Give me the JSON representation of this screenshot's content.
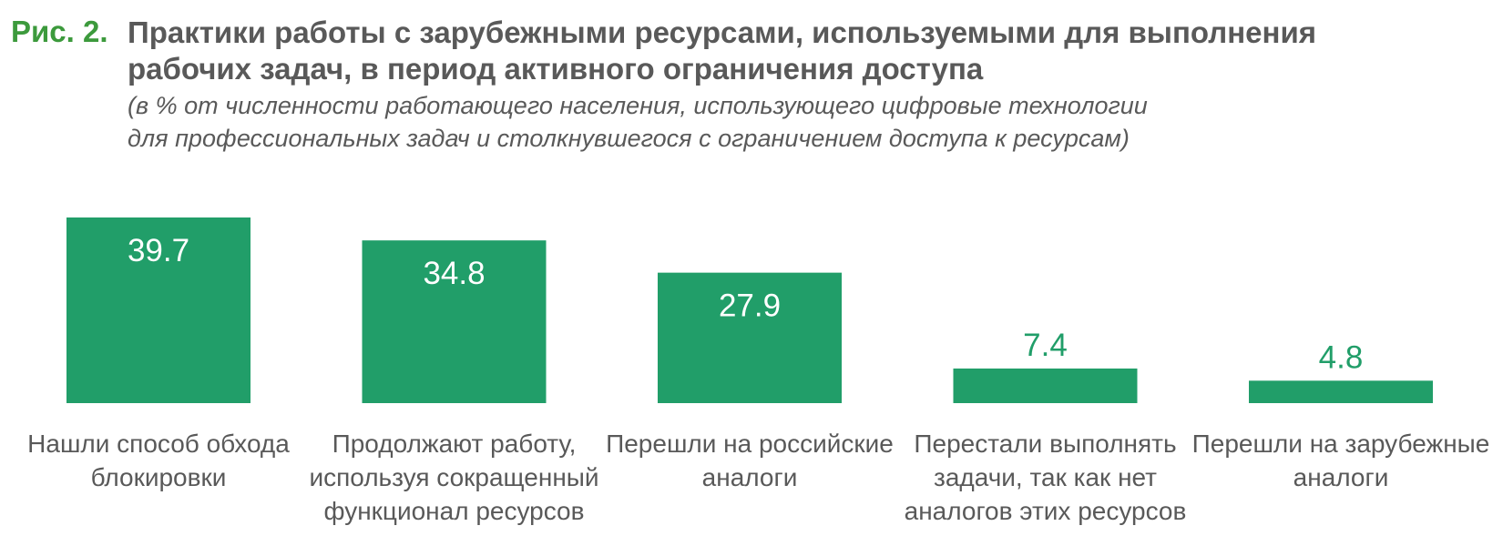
{
  "figure": {
    "label": "Рис. 2.",
    "title_lines": [
      "Практики работы с зарубежными ресурсами, используемыми для выполнения",
      "рабочих задач, в период активного ограничения доступа"
    ],
    "subtitle_lines": [
      "(в % от численности работающего населения, использующего цифровые технологии",
      "для профессиональных задач и столкнувшегося с ограничением доступа к ресурсам)"
    ]
  },
  "colors": {
    "bar": "#219e69",
    "label_green": "#3c9a3c",
    "text_gray": "#595959",
    "value_inside": "#ffffff",
    "value_outside": "#219e69"
  },
  "chart_data": {
    "type": "bar",
    "categories": [
      [
        "Нашли способ обхода",
        "блокировки"
      ],
      [
        "Продолжают работу,",
        "используя сокращенный",
        "функционал ресурсов"
      ],
      [
        "Перешли на российские",
        "аналоги"
      ],
      [
        "Перестали выполнять",
        "задачи, так как нет",
        "аналогов этих ресурсов"
      ],
      [
        "Перешли на зарубежные",
        "аналоги"
      ]
    ],
    "values": [
      39.7,
      34.8,
      27.9,
      7.4,
      4.8
    ],
    "value_labels": [
      "39.7",
      "34.8",
      "27.9",
      "7.4",
      "4.8"
    ],
    "ylim": [
      0,
      39.7
    ],
    "grid": false,
    "legend": "none"
  }
}
